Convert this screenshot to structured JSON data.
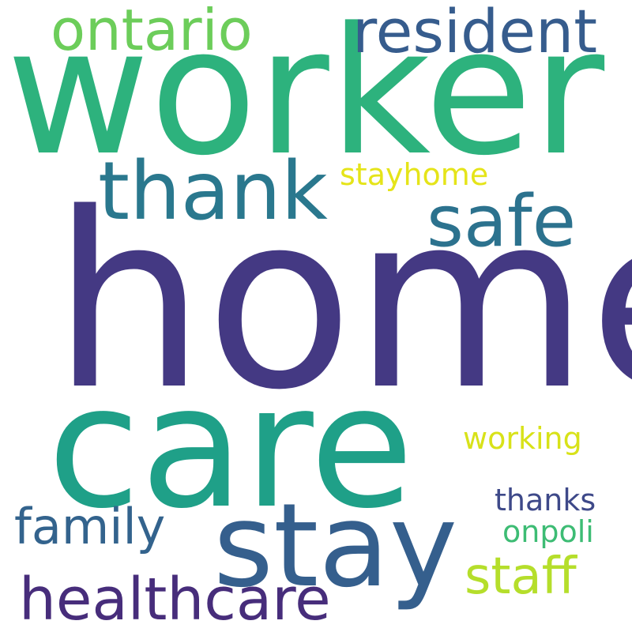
{
  "words": [
    {
      "text": "home",
      "color": "#443983"
    },
    {
      "text": "worker",
      "color": "#2db27d"
    },
    {
      "text": "care",
      "color": "#1fa088"
    },
    {
      "text": "stay",
      "color": "#355f8d"
    },
    {
      "text": "thank",
      "color": "#2a788e"
    },
    {
      "text": "resident",
      "color": "#365c8d"
    },
    {
      "text": "ontario",
      "color": "#6ccd5a"
    },
    {
      "text": "safe",
      "color": "#2c728e"
    },
    {
      "text": "healthcare",
      "color": "#472d7b"
    },
    {
      "text": "staff",
      "color": "#b5de2b"
    },
    {
      "text": "family",
      "color": "#33638d"
    },
    {
      "text": "stayhome",
      "color": "#e5e419"
    },
    {
      "text": "working",
      "color": "#d8e219"
    },
    {
      "text": "thanks",
      "color": "#3e4989"
    },
    {
      "text": "onpoli",
      "color": "#3dbc74"
    }
  ]
}
